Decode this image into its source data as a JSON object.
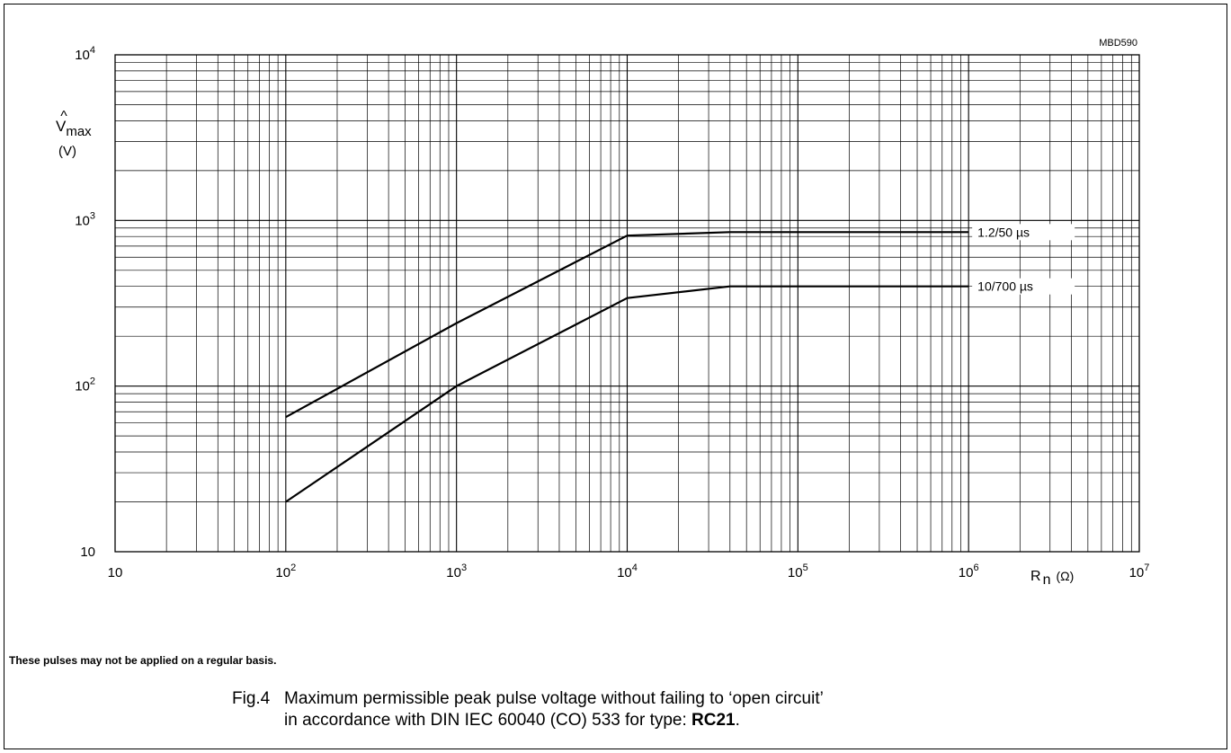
{
  "chart_data": {
    "type": "line",
    "code": "MBD590",
    "ylabel_symbol": "V",
    "ylabel_hat": "^",
    "ylabel_sub": "max",
    "ylabel_unit": "(V)",
    "xlabel_symbol": "R",
    "xlabel_sub": "n",
    "xlabel_unit": "(Ω)",
    "x_scale": "log",
    "y_scale": "log",
    "xlim": [
      10,
      10000000
    ],
    "ylim": [
      10,
      10000
    ],
    "grid": true,
    "x_tick_labels": [
      {
        "value": 10,
        "base": "10",
        "exp": ""
      },
      {
        "value": 100,
        "base": "10",
        "exp": "2"
      },
      {
        "value": 1000,
        "base": "10",
        "exp": "3"
      },
      {
        "value": 10000,
        "base": "10",
        "exp": "4"
      },
      {
        "value": 100000,
        "base": "10",
        "exp": "5"
      },
      {
        "value": 1000000,
        "base": "10",
        "exp": "6"
      },
      {
        "value": 10000000,
        "base": "10",
        "exp": "7"
      }
    ],
    "y_tick_labels": [
      {
        "value": 10,
        "base": "10",
        "exp": ""
      },
      {
        "value": 100,
        "base": "10",
        "exp": "2"
      },
      {
        "value": 1000,
        "base": "10",
        "exp": "3"
      },
      {
        "value": 10000,
        "base": "10",
        "exp": "4"
      }
    ],
    "series": [
      {
        "name": "1.2/50 µs",
        "points": [
          [
            100,
            65
          ],
          [
            1000,
            240
          ],
          [
            10000,
            810
          ],
          [
            40000,
            850
          ],
          [
            1000000,
            850
          ]
        ]
      },
      {
        "name": "10/700 µs",
        "points": [
          [
            100,
            20
          ],
          [
            1000,
            100
          ],
          [
            10000,
            340
          ],
          [
            40000,
            400
          ],
          [
            1000000,
            400
          ]
        ]
      }
    ]
  },
  "note": "These pulses may not be applied on a regular basis.",
  "caption": {
    "number": "Fig.4",
    "line1": "Maximum permissible peak pulse voltage without failing to ‘open circuit’",
    "line2_prefix": "in accordance with DIN IEC 60040 (CO) 533 for type: ",
    "line2_type": "RC21",
    "line2_suffix": "."
  }
}
